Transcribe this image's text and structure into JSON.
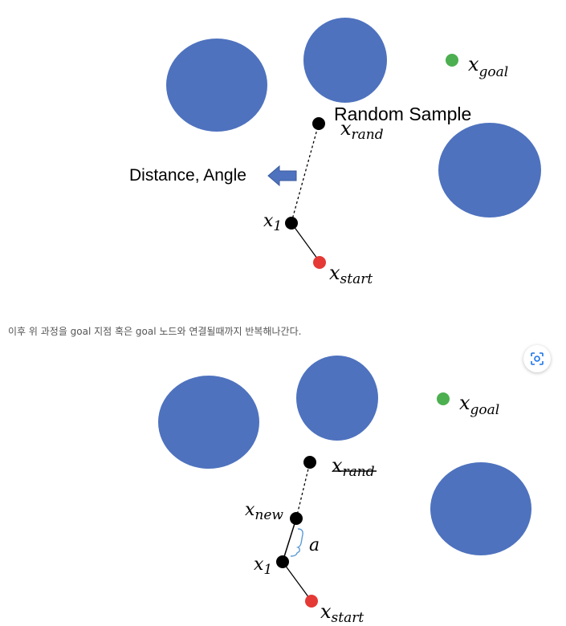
{
  "colors": {
    "obstacle": "#4E72BE",
    "goal_node": "#4CAF50",
    "start_node": "#E53935",
    "node": "#000000",
    "arrow": "#4E72BE",
    "bracket": "#5B9BD5",
    "caption_text": "#555555"
  },
  "diagram1": {
    "random_sample_label": "Random Sample",
    "distance_angle_label": "Distance, Angle",
    "x_goal": {
      "base": "x",
      "sub": "goal"
    },
    "x_rand": {
      "base": "x",
      "sub": "rand"
    },
    "x_1": {
      "base": "x",
      "sub": "1"
    },
    "x_start": {
      "base": "x",
      "sub": "start"
    }
  },
  "caption": "이후 위 과정을 goal 지점 혹은 goal 노드와 연결될때까지 반복해나간다.",
  "diagram2": {
    "x_goal": {
      "base": "x",
      "sub": "goal"
    },
    "x_rand": {
      "base": "x",
      "sub": "rand"
    },
    "x_new": {
      "base": "x",
      "sub": "new"
    },
    "step_label": "a",
    "x_1": {
      "base": "x",
      "sub": "1"
    },
    "x_start": {
      "base": "x",
      "sub": "start"
    }
  },
  "toolbar": {
    "lens_icon": "image-search-icon"
  }
}
